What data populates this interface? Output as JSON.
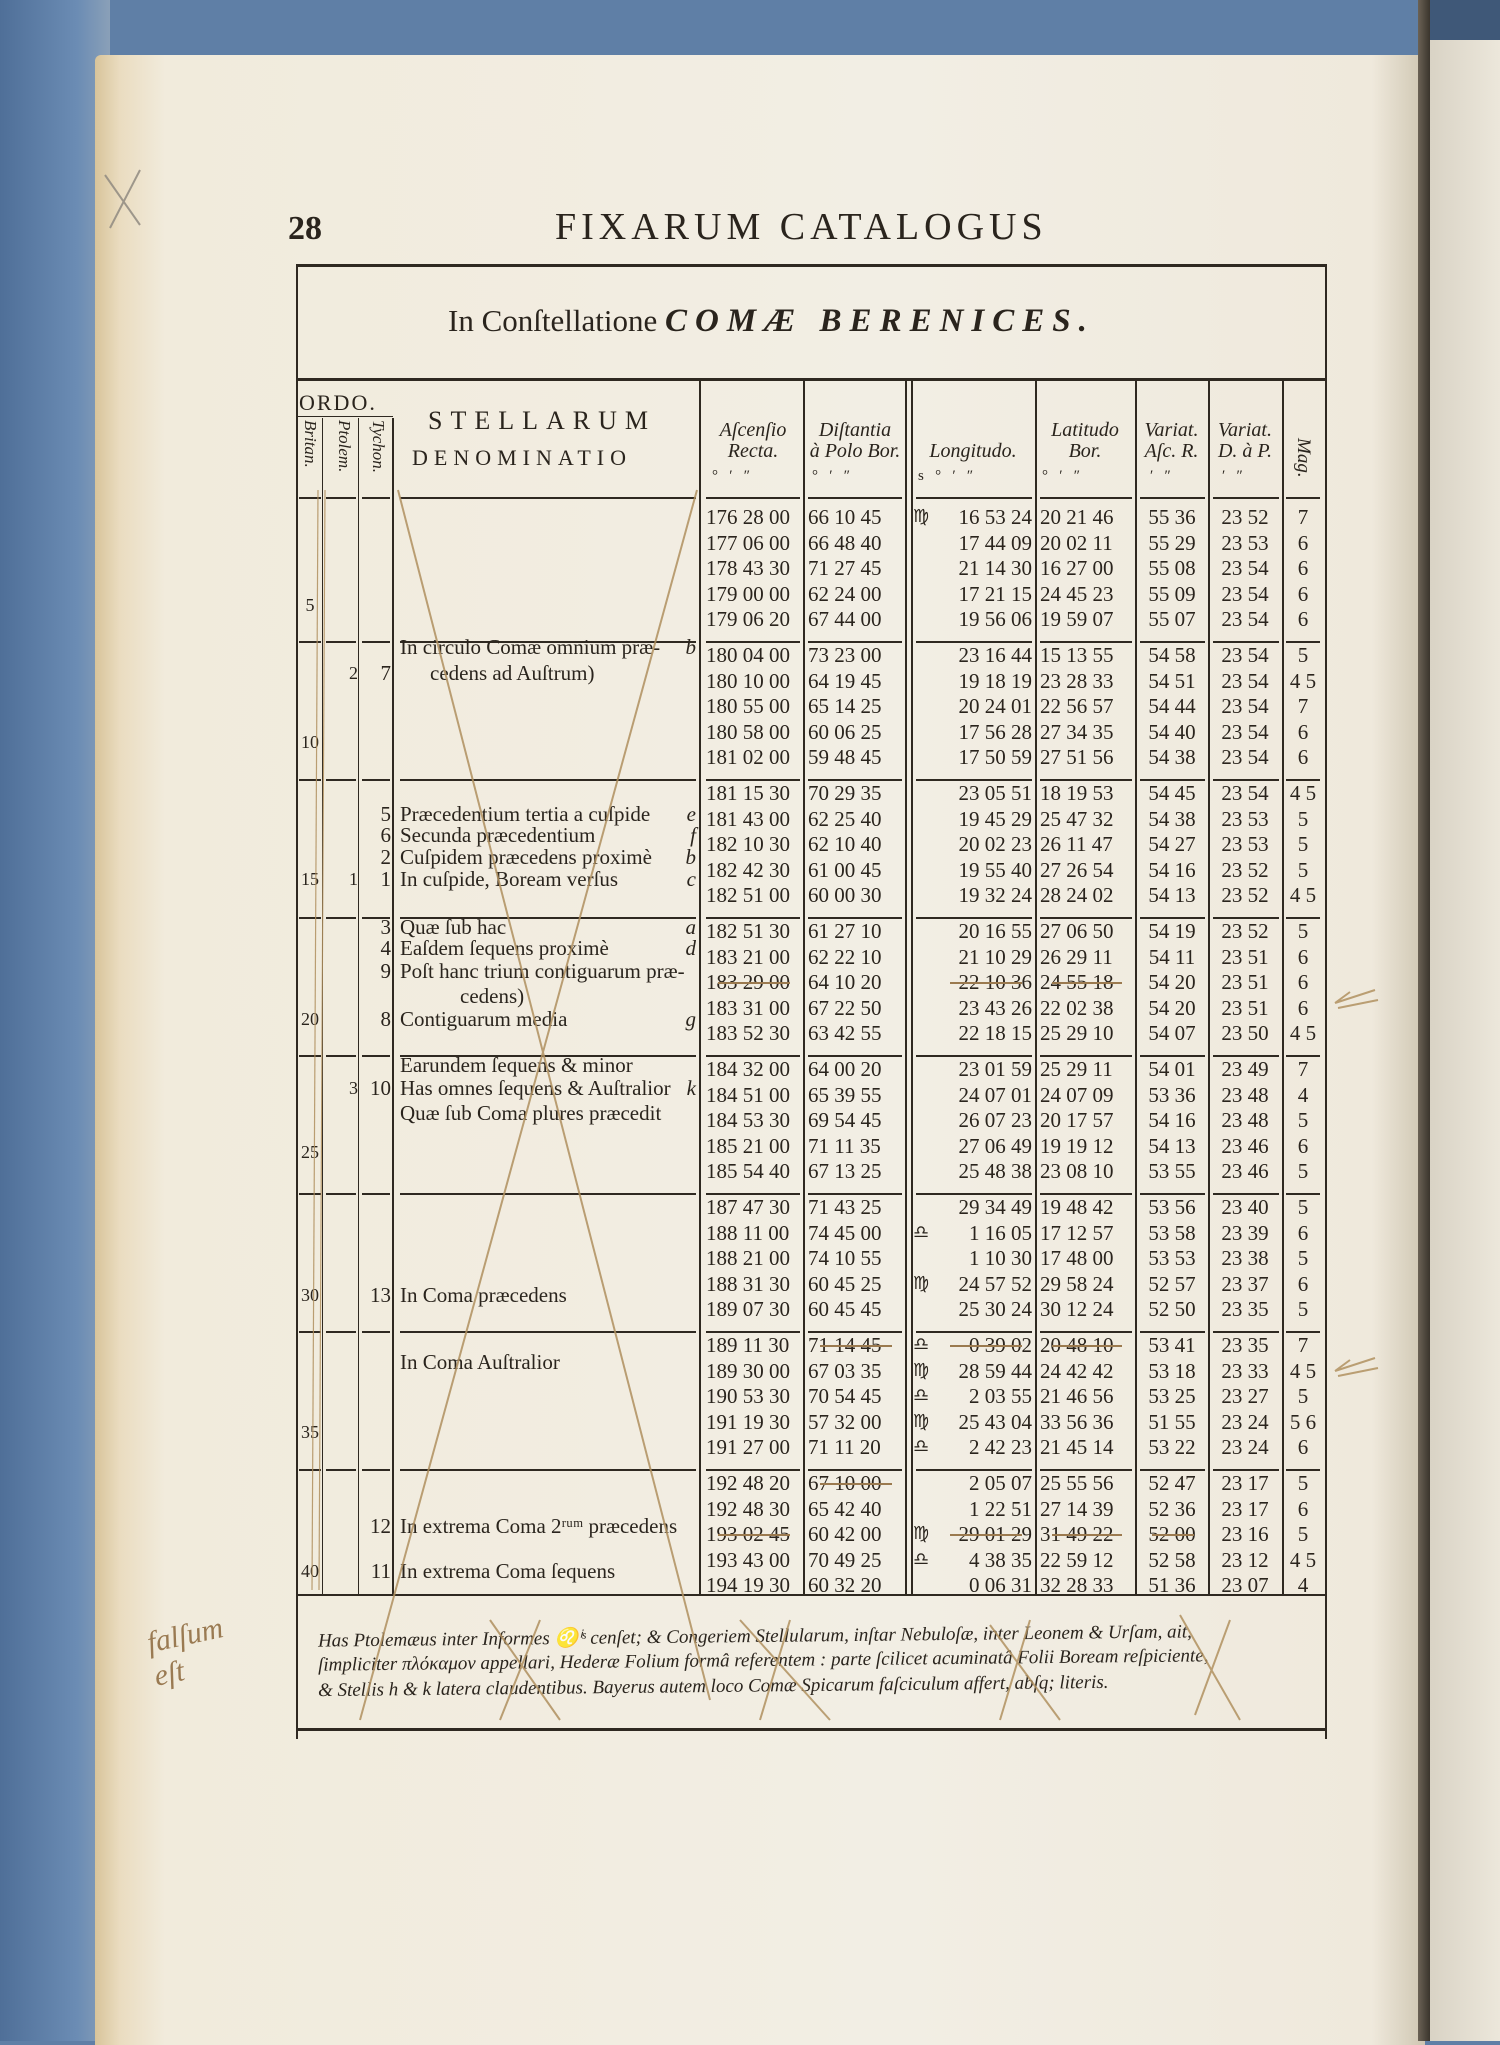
{
  "header": {
    "page_number": "28",
    "running_title": "FIXARUM CATALOGUS"
  },
  "title": {
    "prefix": "In Conſtellatione",
    "name": "COMÆ BERENICES."
  },
  "columns": {
    "ordo": "ORDO.",
    "britan": "Britan.",
    "ptolem": "Ptolem.",
    "tychon": "Tychon.",
    "names_line1": "STELLARUM",
    "names_line2": "DENOMINATIO",
    "ar_1": "Aſcenſio",
    "ar_2": "Recta.",
    "dist_1": "Diſtantia",
    "dist_2": "à Polo Bor.",
    "long": "Longitudo.",
    "lat_1": "Latitudo",
    "lat_2": "Bor.",
    "var_ar_1": "Variat.",
    "var_ar_2": "Aſc. R.",
    "var_dp_1": "Variat.",
    "var_dp_2": "D. à P.",
    "mag": "Mag."
  },
  "units": {
    "ar": "°   ′   ″",
    "dist": "°   ′   ″",
    "long": "s   °   ′   ″",
    "lat": "°   ′   ″",
    "var_ar": "′   ″",
    "var_dp": "′   ″"
  },
  "zodiac_signs": {
    "virgo": "♍",
    "libra": "♎",
    "leo": "♌"
  },
  "groups": [
    {
      "britan": "5",
      "labels": [],
      "rows": [
        {
          "ar": "176 28 00",
          "dist": "66 10 45",
          "sign": "♍",
          "long": "16 53 24",
          "lat": "20 21 46",
          "var_ar": "55 36",
          "var_dp": "23 52",
          "mag": "7"
        },
        {
          "ar": "177 06 00",
          "dist": "66 48 40",
          "sign": "",
          "long": "17 44 09",
          "lat": "20 02 11",
          "var_ar": "55 29",
          "var_dp": "23 53",
          "mag": "6"
        },
        {
          "ar": "178 43 30",
          "dist": "71 27 45",
          "sign": "",
          "long": "21 14 30",
          "lat": "16 27 00",
          "var_ar": "55 08",
          "var_dp": "23 54",
          "mag": "6"
        },
        {
          "ar": "179 00 00",
          "dist": "62 24 00",
          "sign": "",
          "long": "17 21 15",
          "lat": "24 45 23",
          "var_ar": "55 09",
          "var_dp": "23 54",
          "mag": "6"
        },
        {
          "ar": "179 06 20",
          "dist": "67 44 00",
          "sign": "",
          "long": "19 56 06",
          "lat": "19 59 07",
          "var_ar": "55 07",
          "var_dp": "23 54",
          "mag": "6"
        }
      ]
    },
    {
      "britan": "10",
      "labels": [
        {
          "text": "In circulo Comæ omnium præ-",
          "letter": "b",
          "ptolem": "",
          "tycho": ""
        },
        {
          "text": "cedens ad Auſtrum)",
          "letter": "",
          "ptolem": "2",
          "tycho": "7"
        }
      ],
      "rows": [
        {
          "ar": "180 04 00",
          "dist": "73 23 00",
          "sign": "",
          "long": "23 16 44",
          "lat": "15 13 55",
          "var_ar": "54 58",
          "var_dp": "23 54",
          "mag": "5"
        },
        {
          "ar": "180 10 00",
          "dist": "64 19 45",
          "sign": "",
          "long": "19 18 19",
          "lat": "23 28 33",
          "var_ar": "54 51",
          "var_dp": "23 54",
          "mag": "4 5"
        },
        {
          "ar": "180 55 00",
          "dist": "65 14 25",
          "sign": "",
          "long": "20 24 01",
          "lat": "22 56 57",
          "var_ar": "54 44",
          "var_dp": "23 54",
          "mag": "7"
        },
        {
          "ar": "180 58 00",
          "dist": "60 06 25",
          "sign": "",
          "long": "17 56 28",
          "lat": "27 34 35",
          "var_ar": "54 40",
          "var_dp": "23 54",
          "mag": "6"
        },
        {
          "ar": "181 02 00",
          "dist": "59 48 45",
          "sign": "",
          "long": "17 50 59",
          "lat": "27 51 56",
          "var_ar": "54 38",
          "var_dp": "23 54",
          "mag": "6"
        }
      ]
    },
    {
      "britan": "15",
      "labels": [
        {
          "text": "Præcedentium tertia a cuſpide",
          "letter": "e",
          "ptolem": "",
          "tycho": "5"
        },
        {
          "text": "Secunda præcedentium",
          "letter": "f",
          "ptolem": "",
          "tycho": "6"
        },
        {
          "text": "Cuſpidem præcedens proximè",
          "letter": "b",
          "ptolem": "",
          "tycho": "2"
        },
        {
          "text": "In cuſpide, Boream verſus",
          "letter": "c",
          "ptolem": "1",
          "tycho": "1"
        }
      ],
      "rows": [
        {
          "ar": "181 15 30",
          "dist": "70 29 35",
          "sign": "",
          "long": "23 05 51",
          "lat": "18 19 53",
          "var_ar": "54 45",
          "var_dp": "23 54",
          "mag": "4 5"
        },
        {
          "ar": "181 43 00",
          "dist": "62 25 40",
          "sign": "",
          "long": "19 45 29",
          "lat": "25 47 32",
          "var_ar": "54 38",
          "var_dp": "23 53",
          "mag": "5"
        },
        {
          "ar": "182 10 30",
          "dist": "62 10 40",
          "sign": "",
          "long": "20 02 23",
          "lat": "26 11 47",
          "var_ar": "54 27",
          "var_dp": "23 53",
          "mag": "5"
        },
        {
          "ar": "182 42 30",
          "dist": "61 00 45",
          "sign": "",
          "long": "19 55 40",
          "lat": "27 26 54",
          "var_ar": "54 16",
          "var_dp": "23 52",
          "mag": "5"
        },
        {
          "ar": "182 51 00",
          "dist": "60 00 30",
          "sign": "",
          "long": "19 32 24",
          "lat": "28 24 02",
          "var_ar": "54 13",
          "var_dp": "23 52",
          "mag": "4 5"
        }
      ]
    },
    {
      "britan": "20",
      "labels": [
        {
          "text": "Quæ ſub hac",
          "letter": "a",
          "ptolem": "",
          "tycho": "3"
        },
        {
          "text": "Eaſdem ſequens proximè",
          "letter": "d",
          "ptolem": "",
          "tycho": "4"
        },
        {
          "text": "Poſt hanc trium contiguarum præ-",
          "letter": "",
          "ptolem": "",
          "tycho": "9"
        },
        {
          "text": "cedens)",
          "letter": "",
          "ptolem": "",
          "tycho": ""
        },
        {
          "text": "Contiguarum media",
          "letter": "g",
          "ptolem": "",
          "tycho": "8"
        }
      ],
      "rows": [
        {
          "ar": "182 51 30",
          "dist": "61 27 10",
          "sign": "",
          "long": "20 16 55",
          "lat": "27 06 50",
          "var_ar": "54 19",
          "var_dp": "23 52",
          "mag": "5"
        },
        {
          "ar": "183 21 00",
          "dist": "62 22 10",
          "sign": "",
          "long": "21 10 29",
          "lat": "26 29 11",
          "var_ar": "54 11",
          "var_dp": "23 51",
          "mag": "6"
        },
        {
          "ar": "183 29 00",
          "dist": "64 10 20",
          "sign": "",
          "long": "22 10 36",
          "lat": "24 55 18",
          "var_ar": "54 20",
          "var_dp": "23 51",
          "mag": "6",
          "struck": [
            "ar",
            "long",
            "lat"
          ]
        },
        {
          "ar": "183 31 00",
          "dist": "67 22 50",
          "sign": "",
          "long": "23 43 26",
          "lat": "22 02 38",
          "var_ar": "54 20",
          "var_dp": "23 51",
          "mag": "6"
        },
        {
          "ar": "183 52 30",
          "dist": "63 42 55",
          "sign": "",
          "long": "22 18 15",
          "lat": "25 29 10",
          "var_ar": "54 07",
          "var_dp": "23 50",
          "mag": "4 5"
        }
      ]
    },
    {
      "britan": "25",
      "labels": [
        {
          "text": "Earundem ſequens & minor",
          "letter": "",
          "ptolem": "",
          "tycho": ""
        },
        {
          "text": "Has omnes ſequens & Auſtralior",
          "letter": "k",
          "ptolem": "3",
          "tycho": "10"
        },
        {
          "text": "Quæ ſub Coma plures præcedit",
          "letter": "",
          "ptolem": "",
          "tycho": ""
        }
      ],
      "rows": [
        {
          "ar": "184 32 00",
          "dist": "64 00 20",
          "sign": "",
          "long": "23 01 59",
          "lat": "25 29 11",
          "var_ar": "54 01",
          "var_dp": "23 49",
          "mag": "7"
        },
        {
          "ar": "184 51 00",
          "dist": "65 39 55",
          "sign": "",
          "long": "24 07 01",
          "lat": "24 07 09",
          "var_ar": "53 36",
          "var_dp": "23 48",
          "mag": "4"
        },
        {
          "ar": "184 53 30",
          "dist": "69 54 45",
          "sign": "",
          "long": "26 07 23",
          "lat": "20 17 57",
          "var_ar": "54 16",
          "var_dp": "23 48",
          "mag": "5"
        },
        {
          "ar": "185 21 00",
          "dist": "71 11 35",
          "sign": "",
          "long": "27 06 49",
          "lat": "19 19 12",
          "var_ar": "54 13",
          "var_dp": "23 46",
          "mag": "6"
        },
        {
          "ar": "185 54 40",
          "dist": "67 13 25",
          "sign": "",
          "long": "25 48 38",
          "lat": "23 08 10",
          "var_ar": "53 55",
          "var_dp": "23 46",
          "mag": "5"
        }
      ]
    },
    {
      "britan": "30",
      "labels": [
        {
          "text": "In Coma præcedens",
          "letter": "",
          "ptolem": "",
          "tycho": "13"
        }
      ],
      "rows": [
        {
          "ar": "187 47 30",
          "dist": "71 43 25",
          "sign": "",
          "long": "29 34 49",
          "lat": "19 48 42",
          "var_ar": "53 56",
          "var_dp": "23 40",
          "mag": "5"
        },
        {
          "ar": "188 11 00",
          "dist": "74 45 00",
          "sign": "♎",
          "long": "1 16 05",
          "lat": "17 12 57",
          "var_ar": "53 58",
          "var_dp": "23 39",
          "mag": "6"
        },
        {
          "ar": "188 21 00",
          "dist": "74 10 55",
          "sign": "",
          "long": "1 10 30",
          "lat": "17 48 00",
          "var_ar": "53 53",
          "var_dp": "23 38",
          "mag": "5"
        },
        {
          "ar": "188 31 30",
          "dist": "60 45 25",
          "sign": "♍",
          "long": "24 57 52",
          "lat": "29 58 24",
          "var_ar": "52 57",
          "var_dp": "23 37",
          "mag": "6"
        },
        {
          "ar": "189 07 30",
          "dist": "60 45 45",
          "sign": "",
          "long": "25 30 24",
          "lat": "30 12 24",
          "var_ar": "52 50",
          "var_dp": "23 35",
          "mag": "5"
        }
      ]
    },
    {
      "britan": "35",
      "labels": [
        {
          "text": "In Coma Auſtralior",
          "letter": "",
          "ptolem": "",
          "tycho": ""
        }
      ],
      "rows": [
        {
          "ar": "189 11 30",
          "dist": "71 14 45",
          "sign": "♎",
          "long": "0 39 02",
          "lat": "20 48 10",
          "var_ar": "53 41",
          "var_dp": "23 35",
          "mag": "7",
          "struck": [
            "dist",
            "long",
            "lat"
          ]
        },
        {
          "ar": "189 30 00",
          "dist": "67 03 35",
          "sign": "♍",
          "long": "28 59 44",
          "lat": "24 42 42",
          "var_ar": "53 18",
          "var_dp": "23 33",
          "mag": "4 5"
        },
        {
          "ar": "190 53 30",
          "dist": "70 54 45",
          "sign": "♎",
          "long": "2 03 55",
          "lat": "21 46 56",
          "var_ar": "53 25",
          "var_dp": "23 27",
          "mag": "5"
        },
        {
          "ar": "191 19 30",
          "dist": "57 32 00",
          "sign": "♍",
          "long": "25 43 04",
          "lat": "33 56 36",
          "var_ar": "51 55",
          "var_dp": "23 24",
          "mag": "5 6"
        },
        {
          "ar": "191 27 00",
          "dist": "71 11 20",
          "sign": "♎",
          "long": "2 42 23",
          "lat": "21 45 14",
          "var_ar": "53 22",
          "var_dp": "23 24",
          "mag": "6"
        }
      ]
    },
    {
      "britan": "40",
      "labels": [
        {
          "text": "In extrema Coma 2ʳᵘᵐ præcedens",
          "letter": "",
          "ptolem": "",
          "tycho": "12"
        },
        {
          "text": "In extrema Coma ſequens",
          "letter": "",
          "ptolem": "",
          "tycho": "11"
        }
      ],
      "rows": [
        {
          "ar": "192 48 20",
          "dist": "67 10 00",
          "sign": "",
          "long": "2 05 07",
          "lat": "25 55 56",
          "var_ar": "52 47",
          "var_dp": "23 17",
          "mag": "5",
          "struck": [
            "dist"
          ]
        },
        {
          "ar": "192 48 30",
          "dist": "65 42 40",
          "sign": "",
          "long": "1 22 51",
          "lat": "27 14 39",
          "var_ar": "52 36",
          "var_dp": "23 17",
          "mag": "6"
        },
        {
          "ar": "193 02 45",
          "dist": "60 42 00",
          "sign": "♍",
          "long": "29 01 29",
          "lat": "31 49 22",
          "var_ar": "52 00",
          "var_dp": "23 16",
          "mag": "5",
          "struck": [
            "ar",
            "long",
            "lat",
            "var_ar"
          ]
        },
        {
          "ar": "193 43 00",
          "dist": "70 49 25",
          "sign": "♎",
          "long": "4 38 35",
          "lat": "22 59 12",
          "var_ar": "52 58",
          "var_dp": "23 12",
          "mag": "4 5"
        },
        {
          "ar": "194 19 30",
          "dist": "60 32 20",
          "sign": "",
          "long": "0 06 31",
          "lat": "32 28 33",
          "var_ar": "51 36",
          "var_dp": "23 07",
          "mag": "4"
        }
      ]
    }
  ],
  "footnote": {
    "lines": [
      "Has Ptolemæus inter Informes ♌ⁱˢ cenſet; & Congeriem Stellularum, inſtar Nebuloſæ, inter Leonem & Urſam, ait,",
      "ſimpliciter πλόκαμον appellari, Hederæ Folium formâ referentem : parte ſcilicet acuminatâ Folii Boream reſpiciente,",
      "& Stellis h & k latera claudentibus.  Bayerus autem loco Comæ Spicarum faſciculum affert, abſq; literis."
    ]
  },
  "margin_notes": {
    "left": "falſum eſt"
  },
  "colors": {
    "paper": "#f1ede3",
    "ink": "#2a241d",
    "cover": "#5f7fa6",
    "pencil": "#a8895c"
  }
}
